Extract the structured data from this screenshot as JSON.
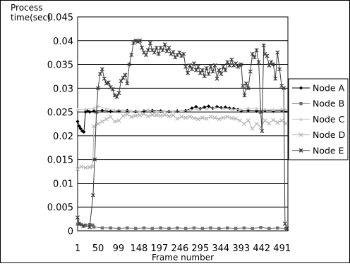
{
  "chart_data": {
    "type": "line",
    "title": "",
    "ylabel": [
      "Process",
      "time(sec)"
    ],
    "xlabel": "Frame number",
    "xlim": [
      1,
      505
    ],
    "ylim": [
      0,
      0.045
    ],
    "yticks": [
      0,
      0.005,
      0.01,
      0.015,
      0.02,
      0.025,
      0.03,
      0.035,
      0.04,
      0.045
    ],
    "ytick_labels": [
      "0",
      "0.005",
      "0.01",
      "0.015",
      "0.02",
      "0.025",
      "0.03",
      "0.035",
      "0.04",
      "0.045"
    ],
    "xticks": [
      1,
      50,
      99,
      148,
      197,
      246,
      295,
      344,
      393,
      442,
      491
    ],
    "xtick_labels": [
      "1",
      "50",
      "99",
      "148",
      "197",
      "246",
      "295",
      "344",
      "393",
      "442",
      "491"
    ],
    "grid": "horizontal",
    "legend_position": "right",
    "series": [
      {
        "name": "Node A",
        "color": "#000000",
        "marker": "diamond",
        "points": [
          [
            1,
            0.023
          ],
          [
            5,
            0.022
          ],
          [
            8,
            0.0215
          ],
          [
            12,
            0.021
          ],
          [
            16,
            0.0208
          ],
          [
            20,
            0.025
          ],
          [
            25,
            0.0252
          ],
          [
            30,
            0.025
          ],
          [
            40,
            0.0252
          ],
          [
            60,
            0.0253
          ],
          [
            80,
            0.0251
          ],
          [
            100,
            0.0252
          ],
          [
            120,
            0.0253
          ],
          [
            140,
            0.0251
          ],
          [
            160,
            0.0252
          ],
          [
            180,
            0.0253
          ],
          [
            200,
            0.0252
          ],
          [
            220,
            0.0251
          ],
          [
            240,
            0.0252
          ],
          [
            260,
            0.0253
          ],
          [
            275,
            0.0258
          ],
          [
            285,
            0.0261
          ],
          [
            295,
            0.0257
          ],
          [
            305,
            0.026
          ],
          [
            315,
            0.0262
          ],
          [
            325,
            0.0258
          ],
          [
            335,
            0.0261
          ],
          [
            345,
            0.0259
          ],
          [
            355,
            0.026
          ],
          [
            365,
            0.0258
          ],
          [
            375,
            0.0257
          ],
          [
            385,
            0.0255
          ],
          [
            393,
            0.0252
          ],
          [
            410,
            0.0253
          ],
          [
            430,
            0.0252
          ],
          [
            450,
            0.0253
          ],
          [
            470,
            0.0252
          ],
          [
            490,
            0.0253
          ],
          [
            500,
            0.0252
          ]
        ]
      },
      {
        "name": "Node B",
        "color": "#6e6e6e",
        "marker": "square",
        "points": [
          [
            1,
            0.0014
          ],
          [
            10,
            0.0013
          ],
          [
            20,
            0.0012
          ],
          [
            30,
            0.0013
          ],
          [
            37,
            0.0012
          ],
          [
            40,
            0.0008
          ],
          [
            60,
            0.0006
          ],
          [
            80,
            0.0006
          ],
          [
            100,
            0.0005
          ],
          [
            120,
            0.0006
          ],
          [
            140,
            0.0005
          ],
          [
            160,
            0.0006
          ],
          [
            180,
            0.0005
          ],
          [
            200,
            0.0006
          ],
          [
            220,
            0.0005
          ],
          [
            240,
            0.0006
          ],
          [
            260,
            0.0005
          ],
          [
            280,
            0.0006
          ],
          [
            300,
            0.0005
          ],
          [
            320,
            0.0006
          ],
          [
            340,
            0.0005
          ],
          [
            360,
            0.0006
          ],
          [
            380,
            0.0005
          ],
          [
            400,
            0.0006
          ],
          [
            420,
            0.0005
          ],
          [
            440,
            0.0007
          ],
          [
            460,
            0.0005
          ],
          [
            480,
            0.0006
          ],
          [
            500,
            0.0005
          ]
        ]
      },
      {
        "name": "Node C",
        "color": "#c8c8c8",
        "marker": "triangle",
        "points": [
          [
            1,
            0.0255
          ],
          [
            20,
            0.0256
          ],
          [
            40,
            0.0258
          ],
          [
            50,
            0.0262
          ],
          [
            70,
            0.0257
          ],
          [
            90,
            0.0254
          ],
          [
            110,
            0.0253
          ],
          [
            130,
            0.0252
          ],
          [
            150,
            0.0251
          ],
          [
            170,
            0.0255
          ],
          [
            190,
            0.025
          ],
          [
            210,
            0.0252
          ],
          [
            230,
            0.0251
          ],
          [
            250,
            0.0253
          ],
          [
            270,
            0.0254
          ],
          [
            290,
            0.0256
          ],
          [
            310,
            0.0257
          ],
          [
            330,
            0.0259
          ],
          [
            350,
            0.0258
          ],
          [
            370,
            0.0256
          ],
          [
            390,
            0.0255
          ],
          [
            410,
            0.0258
          ],
          [
            430,
            0.0257
          ],
          [
            450,
            0.0256
          ],
          [
            470,
            0.0255
          ],
          [
            490,
            0.0256
          ],
          [
            500,
            0.0255
          ]
        ]
      },
      {
        "name": "Node D",
        "color": "#b4b4b4",
        "marker": "x",
        "points": [
          [
            1,
            0.013
          ],
          [
            10,
            0.0135
          ],
          [
            20,
            0.0133
          ],
          [
            30,
            0.0134
          ],
          [
            37,
            0.0135
          ],
          [
            40,
            0.022
          ],
          [
            50,
            0.0225
          ],
          [
            60,
            0.023
          ],
          [
            70,
            0.0235
          ],
          [
            80,
            0.024
          ],
          [
            90,
            0.023
          ],
          [
            100,
            0.0232
          ],
          [
            110,
            0.0242
          ],
          [
            120,
            0.0245
          ],
          [
            130,
            0.024
          ],
          [
            140,
            0.0242
          ],
          [
            150,
            0.0243
          ],
          [
            160,
            0.0246
          ],
          [
            170,
            0.0241
          ],
          [
            180,
            0.0244
          ],
          [
            190,
            0.0243
          ],
          [
            200,
            0.0242
          ],
          [
            210,
            0.0244
          ],
          [
            220,
            0.0241
          ],
          [
            230,
            0.0243
          ],
          [
            240,
            0.0236
          ],
          [
            250,
            0.024
          ],
          [
            260,
            0.0238
          ],
          [
            270,
            0.024
          ],
          [
            280,
            0.0237
          ],
          [
            290,
            0.0235
          ],
          [
            300,
            0.0238
          ],
          [
            310,
            0.0236
          ],
          [
            320,
            0.024
          ],
          [
            330,
            0.0238
          ],
          [
            340,
            0.0235
          ],
          [
            350,
            0.0238
          ],
          [
            360,
            0.024
          ],
          [
            370,
            0.0237
          ],
          [
            380,
            0.0236
          ],
          [
            390,
            0.0232
          ],
          [
            400,
            0.0225
          ],
          [
            410,
            0.0232
          ],
          [
            420,
            0.0215
          ],
          [
            430,
            0.0225
          ],
          [
            440,
            0.0218
          ],
          [
            450,
            0.0232
          ],
          [
            460,
            0.0226
          ],
          [
            470,
            0.0233
          ],
          [
            480,
            0.0228
          ],
          [
            490,
            0.0232
          ],
          [
            500,
            0.0226
          ]
        ]
      },
      {
        "name": "Node E",
        "color": "#3c3c3c",
        "marker": "asterisk",
        "points": [
          [
            1,
            0.0028
          ],
          [
            5,
            0.0015
          ],
          [
            15,
            0.001
          ],
          [
            30,
            0.0008
          ],
          [
            38,
            0.0075
          ],
          [
            42,
            0.015
          ],
          [
            46,
            0.025
          ],
          [
            50,
            0.03
          ],
          [
            55,
            0.033
          ],
          [
            60,
            0.034
          ],
          [
            65,
            0.032
          ],
          [
            70,
            0.031
          ],
          [
            75,
            0.0312
          ],
          [
            80,
            0.0302
          ],
          [
            85,
            0.0298
          ],
          [
            90,
            0.0285
          ],
          [
            95,
            0.0282
          ],
          [
            100,
            0.029
          ],
          [
            105,
            0.0315
          ],
          [
            110,
            0.0322
          ],
          [
            115,
            0.0328
          ],
          [
            120,
            0.031
          ],
          [
            125,
            0.035
          ],
          [
            130,
            0.037
          ],
          [
            135,
            0.0395
          ],
          [
            140,
            0.04
          ],
          [
            145,
            0.0398
          ],
          [
            150,
            0.04
          ],
          [
            155,
            0.0385
          ],
          [
            160,
            0.0375
          ],
          [
            165,
            0.037
          ],
          [
            170,
            0.038
          ],
          [
            175,
            0.0395
          ],
          [
            180,
            0.038
          ],
          [
            185,
            0.0375
          ],
          [
            190,
            0.0385
          ],
          [
            195,
            0.0372
          ],
          [
            200,
            0.0385
          ],
          [
            205,
            0.038
          ],
          [
            210,
            0.0392
          ],
          [
            215,
            0.0378
          ],
          [
            220,
            0.0385
          ],
          [
            225,
            0.0372
          ],
          [
            230,
            0.0376
          ],
          [
            235,
            0.0365
          ],
          [
            240,
            0.037
          ],
          [
            245,
            0.0375
          ],
          [
            250,
            0.0368
          ],
          [
            255,
            0.0372
          ],
          [
            260,
            0.0345
          ],
          [
            265,
            0.0332
          ],
          [
            270,
            0.0348
          ],
          [
            275,
            0.034
          ],
          [
            280,
            0.0352
          ],
          [
            285,
            0.0338
          ],
          [
            290,
            0.0345
          ],
          [
            295,
            0.0332
          ],
          [
            300,
            0.0338
          ],
          [
            305,
            0.0325
          ],
          [
            310,
            0.0342
          ],
          [
            315,
            0.033
          ],
          [
            320,
            0.0345
          ],
          [
            325,
            0.0335
          ],
          [
            330,
            0.0348
          ],
          [
            335,
            0.032
          ],
          [
            340,
            0.0338
          ],
          [
            345,
            0.033
          ],
          [
            350,
            0.0345
          ],
          [
            355,
            0.0338
          ],
          [
            360,
            0.0355
          ],
          [
            365,
            0.0348
          ],
          [
            370,
            0.036
          ],
          [
            375,
            0.0348
          ],
          [
            380,
            0.0352
          ],
          [
            385,
            0.0345
          ],
          [
            390,
            0.0348
          ],
          [
            393,
            0.035
          ],
          [
            397,
            0.0305
          ],
          [
            401,
            0.0285
          ],
          [
            405,
            0.031
          ],
          [
            410,
            0.03
          ],
          [
            415,
            0.0335
          ],
          [
            420,
            0.0372
          ],
          [
            425,
            0.0365
          ],
          [
            430,
            0.038
          ],
          [
            435,
            0.0355
          ],
          [
            440,
            0.025
          ],
          [
            443,
            0.021
          ],
          [
            447,
            0.039
          ],
          [
            450,
            0.0372
          ],
          [
            455,
            0.0368
          ],
          [
            460,
            0.0348
          ],
          [
            465,
            0.0355
          ],
          [
            470,
            0.035
          ],
          [
            475,
            0.032
          ],
          [
            480,
            0.0375
          ],
          [
            485,
            0.034
          ],
          [
            490,
            0.0305
          ],
          [
            495,
            0.03
          ],
          [
            498,
            0.0015
          ],
          [
            503,
            0.0005
          ]
        ]
      }
    ]
  }
}
